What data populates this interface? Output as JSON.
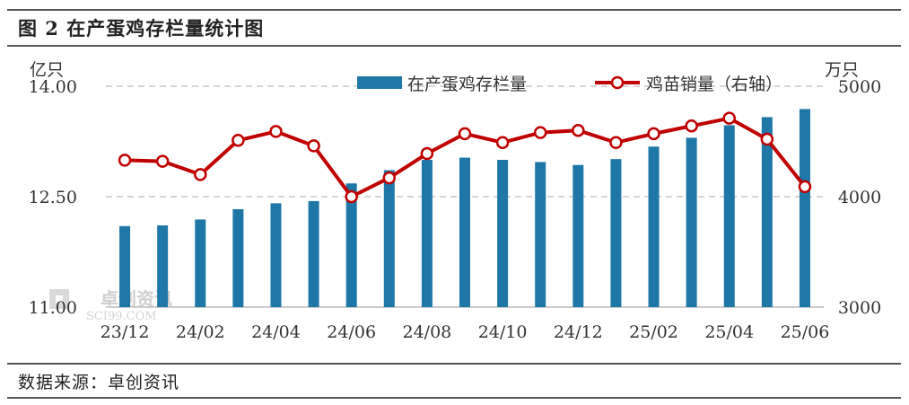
{
  "title": "图 2  在产蛋鸡存栏量统计图",
  "source": "数据来源：卓创资讯",
  "watermark": "卓创资讯",
  "watermark_sub": "SCI99.COM",
  "colors": {
    "bar": "#1F77A8",
    "line": "#C00000",
    "grid": "#c8c8c8"
  },
  "chart_data": {
    "type": "bar+line",
    "left_unit": "亿只",
    "right_unit": "万只",
    "left_ylim": [
      11.0,
      14.0
    ],
    "right_ylim": [
      3000,
      5000
    ],
    "left_ticks": [
      "14.00",
      "12.50",
      "11.00"
    ],
    "left_tick_values": [
      14.0,
      12.5,
      11.0
    ],
    "right_ticks": [
      "5000",
      "4000",
      "3000"
    ],
    "right_tick_values": [
      5000,
      4000,
      3000
    ],
    "x_tick_labels": [
      "23/12",
      "24/02",
      "24/04",
      "24/06",
      "24/08",
      "24/10",
      "24/12",
      "25/02",
      "25/04",
      "25/06"
    ],
    "grid": "horizontal dashed",
    "legend_position": "top",
    "series": [
      {
        "name": "在产蛋鸡存栏量",
        "type": "bar",
        "axis": "left",
        "values": [
          12.1,
          12.11,
          12.19,
          12.33,
          12.41,
          12.44,
          12.68,
          12.86,
          13.0,
          13.03,
          13.0,
          12.97,
          12.93,
          13.01,
          13.18,
          13.3,
          13.47,
          13.58,
          13.69
        ]
      },
      {
        "name": "鸡苗销量（右轴）",
        "type": "line",
        "axis": "right",
        "values": [
          4330,
          4320,
          4200,
          4510,
          4590,
          4460,
          4000,
          4170,
          4390,
          4570,
          4490,
          4580,
          4600,
          4490,
          4570,
          4640,
          4710,
          4520,
          4090
        ]
      }
    ]
  }
}
